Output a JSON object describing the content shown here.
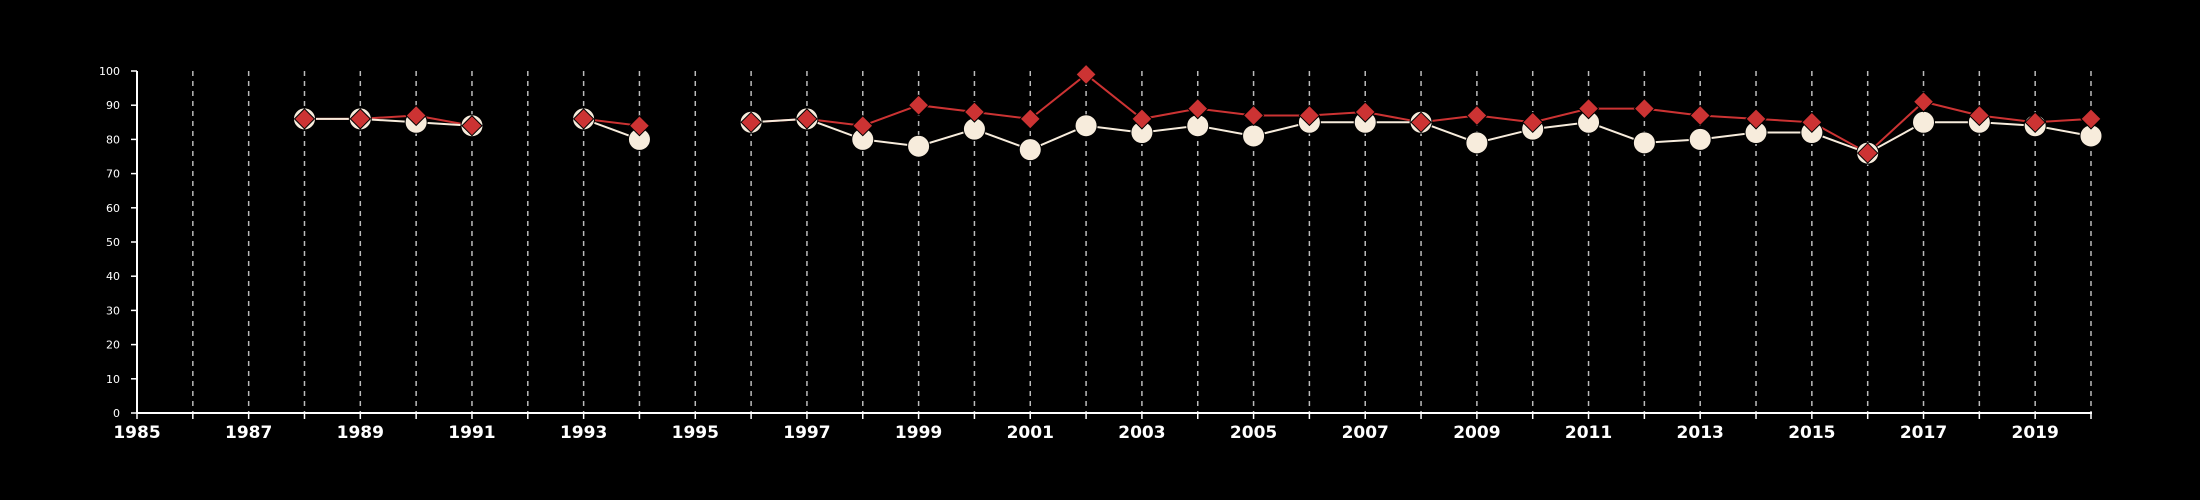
{
  "chart_data": {
    "type": "line",
    "title": "",
    "xlabel": "",
    "ylabel": "",
    "xlim": [
      1985,
      2020
    ],
    "ylim": [
      0,
      100
    ],
    "x_ticks": [
      "1985",
      "1987",
      "1989",
      "1991",
      "1993",
      "1995",
      "1997",
      "1999",
      "2001",
      "2003",
      "2005",
      "2007",
      "2009",
      "2011",
      "2013",
      "2015",
      "2017",
      "2019"
    ],
    "y_ticks": [
      "0",
      "10",
      "20",
      "30",
      "40",
      "50",
      "60",
      "70",
      "80",
      "90",
      "100"
    ],
    "grid": "vertical dashed at every year",
    "x": [
      1988,
      1989,
      1990,
      1991,
      1992,
      1993,
      1994,
      1995,
      1996,
      1997,
      1998,
      1999,
      2000,
      2001,
      2002,
      2003,
      2004,
      2005,
      2006,
      2007,
      2008,
      2009,
      2010,
      2011,
      2012,
      2013,
      2014,
      2015,
      2016,
      2017,
      2018,
      2019,
      2020
    ],
    "series": [
      {
        "marker": "circle",
        "color": "#f7ecdc",
        "values": [
          86,
          86,
          85,
          84,
          null,
          86,
          80,
          null,
          85,
          86,
          80,
          78,
          83,
          77,
          84,
          82,
          84,
          81,
          85,
          85,
          85,
          79,
          83,
          85,
          79,
          80,
          82,
          82,
          76,
          85,
          85,
          84,
          81
        ]
      },
      {
        "marker": "diamond",
        "color": "#cc3333",
        "values": [
          86,
          86,
          87,
          84,
          null,
          86,
          84,
          null,
          85,
          86,
          84,
          90,
          88,
          86,
          99,
          86,
          89,
          87,
          87,
          88,
          85,
          87,
          85,
          89,
          89,
          87,
          86,
          85,
          76,
          91,
          87,
          85,
          86
        ]
      }
    ]
  }
}
